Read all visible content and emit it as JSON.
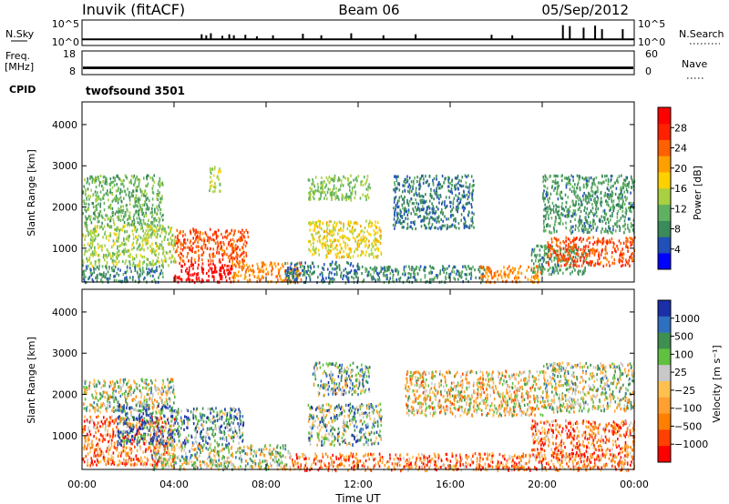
{
  "header": {
    "station": "Inuvik (fitACF)",
    "beam": "Beam 06",
    "date": "05/Sep/2012"
  },
  "colors": {
    "power_scale": [
      "#0000ff",
      "#2050b8",
      "#3a8a5a",
      "#5fb060",
      "#a8d040",
      "#ffd000",
      "#ffa000",
      "#ff6000",
      "#ff2000",
      "#ff0000"
    ],
    "velocity_scale": [
      "#1a2fa8",
      "#2f6fbf",
      "#3e8f50",
      "#60c040",
      "#c8c8c8",
      "#ffc050",
      "#ffa030",
      "#ff7f00",
      "#ff4000",
      "#ff0000"
    ]
  },
  "chart_data": [
    {
      "type": "line",
      "name": "nsky-nsearch",
      "labels": {
        "left_top": "N.Sky",
        "left_bottom": "",
        "right": "N.Search",
        "right_style": "dotted"
      },
      "left_ticks": [
        "10^5",
        "10^0"
      ],
      "right_ticks": [
        "10^5",
        "10^0"
      ],
      "ylim": [
        0,
        5
      ],
      "yscale": "log",
      "baseline": 1.2,
      "spikes": [
        [
          5.2,
          2.2
        ],
        [
          5.4,
          2.0
        ],
        [
          5.6,
          2.4
        ],
        [
          6.1,
          1.9
        ],
        [
          6.4,
          2.2
        ],
        [
          6.6,
          2.0
        ],
        [
          7.1,
          2.1
        ],
        [
          7.6,
          1.8
        ],
        [
          8.3,
          2.0
        ],
        [
          9.6,
          2.3
        ],
        [
          10.4,
          2.0
        ],
        [
          11.7,
          2.4
        ],
        [
          13.1,
          2.0
        ],
        [
          14.5,
          2.2
        ],
        [
          17.8,
          2.1
        ],
        [
          18.7,
          2.0
        ],
        [
          20.9,
          4.0
        ],
        [
          21.2,
          3.8
        ],
        [
          21.8,
          3.5
        ],
        [
          22.3,
          3.9
        ],
        [
          22.6,
          3.2
        ],
        [
          23.5,
          3.2
        ]
      ]
    },
    {
      "type": "line",
      "name": "freq-nave",
      "labels": {
        "left_top": "Freq.",
        "left_bottom": "[MHz]",
        "right": "Nave",
        "right_style": "dotted"
      },
      "left_ticks": [
        "18",
        "8"
      ],
      "right_ticks": [
        "60",
        "0"
      ],
      "ylim": [
        8,
        18
      ],
      "band": [
        10.3,
        11.4
      ]
    },
    {
      "type": "table",
      "name": "cpid",
      "label": "CPID",
      "value": "twofsound 3501"
    },
    {
      "type": "heatmap",
      "name": "power",
      "ylabel": "Slant Range [km]",
      "yticks": [
        1000,
        2000,
        3000,
        4000
      ],
      "ylim": [
        180,
        4550
      ],
      "colorbar_label": "Power [dB]",
      "colorbar_ticks": [
        4,
        8,
        12,
        16,
        20,
        24,
        28
      ],
      "colorbar_range": [
        0,
        32
      ],
      "blobs": [
        {
          "t": [
            4.0,
            6.5
          ],
          "r": [
            200,
            700
          ],
          "v": 30
        },
        {
          "t": [
            4.0,
            7.2
          ],
          "r": [
            700,
            1500
          ],
          "v": 25
        },
        {
          "t": [
            0.0,
            4.0
          ],
          "r": [
            600,
            1600
          ],
          "v": 14
        },
        {
          "t": [
            0.0,
            3.5
          ],
          "r": [
            1600,
            2800
          ],
          "v": 11
        },
        {
          "t": [
            0.0,
            3.5
          ],
          "r": [
            200,
            600
          ],
          "v": 8
        },
        {
          "t": [
            6.5,
            9.5
          ],
          "r": [
            200,
            700
          ],
          "v": 22
        },
        {
          "t": [
            8.8,
            12.0
          ],
          "r": [
            180,
            700
          ],
          "v": 7
        },
        {
          "t": [
            9.8,
            13.0
          ],
          "r": [
            800,
            1700
          ],
          "v": 17
        },
        {
          "t": [
            9.8,
            12.5
          ],
          "r": [
            2200,
            2800
          ],
          "v": 13
        },
        {
          "t": [
            12.0,
            17.5
          ],
          "r": [
            200,
            600
          ],
          "v": 8
        },
        {
          "t": [
            13.5,
            17.0
          ],
          "r": [
            1500,
            2800
          ],
          "v": 7
        },
        {
          "t": [
            17.3,
            20.0
          ],
          "r": [
            200,
            600
          ],
          "v": 22
        },
        {
          "t": [
            19.5,
            22.0
          ],
          "r": [
            400,
            1100
          ],
          "v": 9
        },
        {
          "t": [
            20.2,
            24.0
          ],
          "r": [
            600,
            1300
          ],
          "v": 25
        },
        {
          "t": [
            20.0,
            24.0
          ],
          "r": [
            1400,
            2800
          ],
          "v": 9
        },
        {
          "t": [
            5.5,
            6.0
          ],
          "r": [
            2400,
            3000
          ],
          "v": 14
        }
      ]
    },
    {
      "type": "heatmap",
      "name": "velocity",
      "ylabel": "Slant Range [km]",
      "xlabel": "Time UT",
      "xticks": [
        "00:00",
        "04:00",
        "08:00",
        "12:00",
        "16:00",
        "20:00",
        "00:00"
      ],
      "xlim": [
        0,
        24
      ],
      "yticks": [
        1000,
        2000,
        3000,
        4000
      ],
      "ylim": [
        180,
        4550
      ],
      "colorbar_label": "Velocity [m s⁻¹]",
      "colorbar_ticks": [
        "1000",
        "500",
        "100",
        "25",
        "−25",
        "−100",
        "−500",
        "−1000"
      ],
      "blobs": [
        {
          "t": [
            0.0,
            4.0
          ],
          "r": [
            300,
            1500
          ],
          "v": 7
        },
        {
          "t": [
            0.0,
            4.0
          ],
          "r": [
            1600,
            2400
          ],
          "v": 4
        },
        {
          "t": [
            1.5,
            4.0
          ],
          "r": [
            800,
            1800
          ],
          "v": 1
        },
        {
          "t": [
            3.0,
            9.0
          ],
          "r": [
            200,
            800
          ],
          "v": 4
        },
        {
          "t": [
            4.0,
            7.0
          ],
          "r": [
            800,
            1700
          ],
          "v": 2
        },
        {
          "t": [
            9.8,
            13.0
          ],
          "r": [
            800,
            1800
          ],
          "v": 3
        },
        {
          "t": [
            10.0,
            12.5
          ],
          "r": [
            2000,
            2800
          ],
          "v": 3
        },
        {
          "t": [
            9.0,
            24.0
          ],
          "r": [
            180,
            600
          ],
          "v": 7
        },
        {
          "t": [
            19.5,
            24.0
          ],
          "r": [
            500,
            1400
          ],
          "v": 7
        },
        {
          "t": [
            14.0,
            20.0
          ],
          "r": [
            1500,
            2600
          ],
          "v": 5
        },
        {
          "t": [
            20.0,
            24.0
          ],
          "r": [
            1600,
            2800
          ],
          "v": 4
        }
      ]
    }
  ]
}
